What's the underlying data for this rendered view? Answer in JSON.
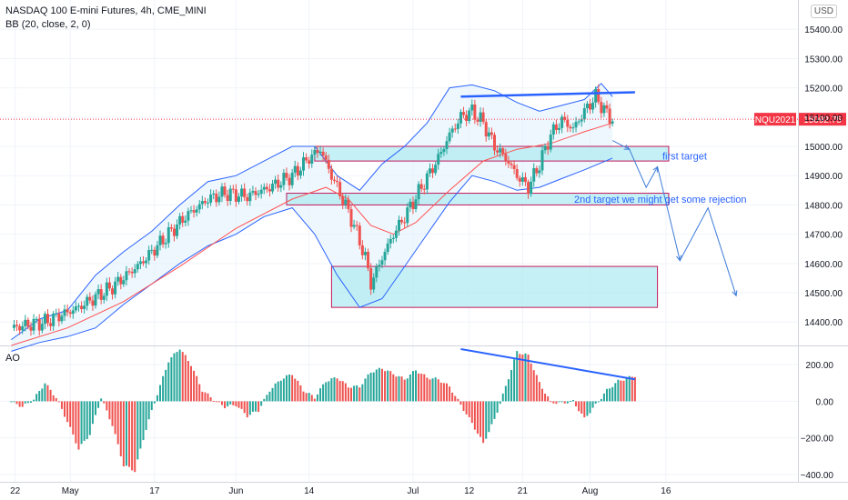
{
  "header": {
    "symbol_line": "NASDAQ 100 E-mini Futures, 4h, CME_MINI",
    "indicator_line": "BB (20, close, 2, 0)",
    "currency": "USD",
    "ao_label": "AO"
  },
  "annotations": {
    "first_target": "first target",
    "second_target": "2nd target we might get some rejection"
  },
  "colors": {
    "up": "#26a69a",
    "down": "#ef5350",
    "bb_band": "#2962ff",
    "bb_basis": "#ff5252",
    "bb_fill": "#e3f2fd",
    "zone_fill": "#b2ebf2",
    "zone_border": "#c2185b",
    "trend": "#2962ff",
    "price_tag": "#f23645",
    "ao_up": "#26a69a",
    "ao_down": "#ef5350"
  },
  "chart_data": [
    {
      "type": "candlestick",
      "title": "NASDAQ 100 E-mini Futures, 4h, CME_MINI",
      "ylim": [
        14320,
        15500
      ],
      "y_ticks": [
        14400,
        14500,
        14600,
        14700,
        14800,
        14900,
        15000,
        15100,
        15200,
        15300,
        15400
      ],
      "y_tick_labels": [
        "14400.00",
        "14500.00",
        "14600.00",
        "14700.00",
        "14800.00",
        "14900.00",
        "15000.00",
        "15100.00",
        "15200.00",
        "15300.00",
        "15400.00"
      ],
      "last_price": {
        "symbol": "NQU2021",
        "value": "15092.75",
        "y": 15092.75
      },
      "path_close": [
        [
          0,
          14380
        ],
        [
          6,
          14400
        ],
        [
          12,
          14450
        ],
        [
          18,
          14520
        ],
        [
          23,
          14600
        ],
        [
          27,
          14680
        ],
        [
          31,
          14760
        ],
        [
          35,
          14820
        ],
        [
          38,
          14840
        ],
        [
          42,
          14830
        ],
        [
          46,
          14860
        ],
        [
          50,
          14900
        ],
        [
          53,
          14960
        ],
        [
          55,
          14990
        ],
        [
          57,
          14900
        ],
        [
          59,
          14820
        ],
        [
          61,
          14730
        ],
        [
          63,
          14620
        ],
        [
          64,
          14530
        ],
        [
          66,
          14620
        ],
        [
          68,
          14700
        ],
        [
          70,
          14760
        ],
        [
          73,
          14860
        ],
        [
          76,
          14960
        ],
        [
          78,
          15040
        ],
        [
          80,
          15100
        ],
        [
          82,
          15120
        ],
        [
          84,
          15080
        ],
        [
          86,
          15000
        ],
        [
          88,
          14960
        ],
        [
          90,
          14900
        ],
        [
          92,
          14860
        ],
        [
          94,
          14940
        ],
        [
          96,
          15040
        ],
        [
          98,
          15090
        ],
        [
          100,
          15060
        ],
        [
          102,
          15120
        ],
        [
          104,
          15170
        ],
        [
          106,
          15110
        ],
        [
          107,
          15093
        ]
      ],
      "bb_basis": [
        [
          0,
          14320
        ],
        [
          10,
          14380
        ],
        [
          20,
          14470
        ],
        [
          30,
          14590
        ],
        [
          40,
          14720
        ],
        [
          50,
          14820
        ],
        [
          56,
          14860
        ],
        [
          60,
          14820
        ],
        [
          64,
          14730
        ],
        [
          68,
          14700
        ],
        [
          72,
          14740
        ],
        [
          78,
          14850
        ],
        [
          84,
          14950
        ],
        [
          90,
          14990
        ],
        [
          96,
          15010
        ],
        [
          102,
          15050
        ],
        [
          107,
          15080
        ]
      ],
      "bb_upper": [
        [
          0,
          14340
        ],
        [
          5,
          14410
        ],
        [
          10,
          14440
        ],
        [
          15,
          14560
        ],
        [
          20,
          14640
        ],
        [
          25,
          14710
        ],
        [
          30,
          14800
        ],
        [
          35,
          14880
        ],
        [
          40,
          14900
        ],
        [
          45,
          14950
        ],
        [
          50,
          15000
        ],
        [
          54,
          15000
        ],
        [
          58,
          14900
        ],
        [
          62,
          14850
        ],
        [
          66,
          14940
        ],
        [
          70,
          15000
        ],
        [
          74,
          15080
        ],
        [
          78,
          15200
        ],
        [
          82,
          15210
        ],
        [
          86,
          15190
        ],
        [
          90,
          15150
        ],
        [
          94,
          15120
        ],
        [
          98,
          15140
        ],
        [
          102,
          15160
        ],
        [
          105,
          15215
        ],
        [
          107,
          15170
        ]
      ],
      "bb_lower": [
        [
          0,
          14300
        ],
        [
          5,
          14330
        ],
        [
          10,
          14350
        ],
        [
          15,
          14380
        ],
        [
          20,
          14460
        ],
        [
          25,
          14530
        ],
        [
          30,
          14600
        ],
        [
          35,
          14660
        ],
        [
          40,
          14700
        ],
        [
          45,
          14760
        ],
        [
          50,
          14790
        ],
        [
          54,
          14700
        ],
        [
          58,
          14560
        ],
        [
          62,
          14450
        ],
        [
          66,
          14480
        ],
        [
          70,
          14590
        ],
        [
          74,
          14700
        ],
        [
          78,
          14810
        ],
        [
          82,
          14900
        ],
        [
          86,
          14880
        ],
        [
          90,
          14850
        ],
        [
          94,
          14860
        ],
        [
          98,
          14890
        ],
        [
          102,
          14920
        ],
        [
          107,
          14960
        ]
      ],
      "zones": [
        {
          "label": "first target",
          "x0": 54,
          "x1": 117,
          "y_top": 15000,
          "y_bottom": 14950
        },
        {
          "label": "2nd target we might get some rejection",
          "x0": 49,
          "x1": 117,
          "y_top": 14840,
          "y_bottom": 14800
        },
        {
          "label": "",
          "x0": 57,
          "x1": 115,
          "y_top": 14590,
          "y_bottom": 14450
        }
      ],
      "trendline": [
        [
          80,
          15170
        ],
        [
          111,
          15185
        ]
      ],
      "projection_path": [
        [
          107,
          15020
        ],
        [
          110,
          14990
        ],
        [
          113,
          14860
        ],
        [
          115,
          14930
        ],
        [
          119,
          14610
        ],
        [
          124,
          14790
        ],
        [
          129,
          14490
        ]
      ]
    },
    {
      "type": "bar",
      "title": "AO",
      "ylim": [
        -440,
        300
      ],
      "y_ticks": [
        200,
        0,
        -200,
        -400
      ],
      "y_tick_labels": [
        "200.00",
        "0.00",
        "−200.00",
        "−400.00"
      ],
      "trendline": [
        [
          80,
          285
        ],
        [
          111,
          120
        ]
      ],
      "profile": [
        [
          0,
          0
        ],
        [
          2,
          -30
        ],
        [
          4,
          10
        ],
        [
          6,
          100
        ],
        [
          8,
          20
        ],
        [
          10,
          -110
        ],
        [
          12,
          -260
        ],
        [
          14,
          -180
        ],
        [
          16,
          20
        ],
        [
          18,
          -130
        ],
        [
          20,
          -350
        ],
        [
          22,
          -380
        ],
        [
          24,
          -150
        ],
        [
          26,
          40
        ],
        [
          28,
          220
        ],
        [
          30,
          290
        ],
        [
          32,
          200
        ],
        [
          34,
          60
        ],
        [
          36,
          10
        ],
        [
          38,
          -30
        ],
        [
          40,
          -20
        ],
        [
          42,
          -80
        ],
        [
          44,
          -50
        ],
        [
          46,
          60
        ],
        [
          48,
          120
        ],
        [
          50,
          150
        ],
        [
          52,
          60
        ],
        [
          54,
          20
        ],
        [
          56,
          110
        ],
        [
          58,
          130
        ],
        [
          60,
          80
        ],
        [
          62,
          80
        ],
        [
          64,
          160
        ],
        [
          66,
          180
        ],
        [
          68,
          150
        ],
        [
          70,
          120
        ],
        [
          72,
          170
        ],
        [
          74,
          130
        ],
        [
          76,
          120
        ],
        [
          78,
          80
        ],
        [
          80,
          -20
        ],
        [
          82,
          -120
        ],
        [
          84,
          -230
        ],
        [
          86,
          -100
        ],
        [
          88,
          80
        ],
        [
          90,
          270
        ],
        [
          92,
          250
        ],
        [
          94,
          100
        ],
        [
          96,
          -5
        ],
        [
          98,
          -10
        ],
        [
          100,
          0
        ],
        [
          102,
          -95
        ],
        [
          104,
          -20
        ],
        [
          106,
          60
        ],
        [
          108,
          110
        ],
        [
          111,
          140
        ]
      ]
    }
  ],
  "x_axis": {
    "labels": [
      {
        "text": "22",
        "x": 0.7
      },
      {
        "text": "May",
        "x": 10.5
      },
      {
        "text": "17",
        "x": 25.5
      },
      {
        "text": "Jun",
        "x": 40
      },
      {
        "text": "14",
        "x": 53
      },
      {
        "text": "Jul",
        "x": 71.5
      },
      {
        "text": "12",
        "x": 81.5
      },
      {
        "text": "21",
        "x": 91
      },
      {
        "text": "Aug",
        "x": 103
      },
      {
        "text": "16",
        "x": 116.5
      }
    ],
    "range": [
      -2,
      140
    ]
  }
}
